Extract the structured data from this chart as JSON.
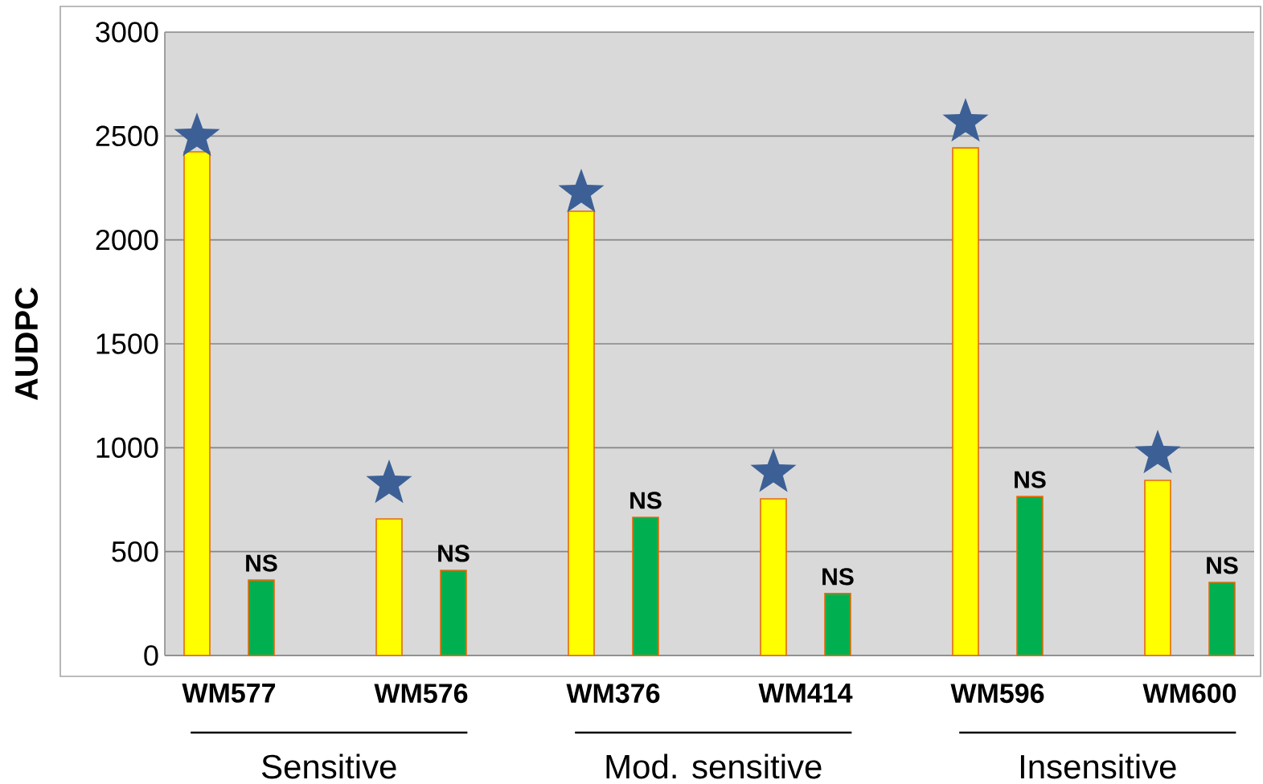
{
  "chart_data": {
    "type": "bar",
    "ylabel": "AUDPC",
    "categories": [
      "WM577",
      "WM576",
      "WM376",
      "WM414",
      "WM596",
      "WM600"
    ],
    "series": [
      {
        "color": "#ffff00",
        "values": [
          2424,
          657,
          2138,
          754,
          2443,
          843
        ]
      },
      {
        "color": "#00b050",
        "values": [
          363,
          410,
          665,
          298,
          765,
          352
        ]
      },
      {
        "type": "scatter",
        "marker": "star",
        "color": "#3c6096",
        "values": [
          2497,
          827,
          2227,
          881,
          2567,
          970
        ]
      }
    ],
    "ylim": [
      0,
      3000
    ],
    "yticks": [
      0,
      500,
      1000,
      1500,
      2000,
      2500,
      3000
    ],
    "grid": "y",
    "annotations": [
      "NS",
      "NS",
      "NS",
      "NS",
      "NS",
      "NS",
      "Sensitive",
      "Mod. sensitive",
      "Insensitive"
    ]
  }
}
